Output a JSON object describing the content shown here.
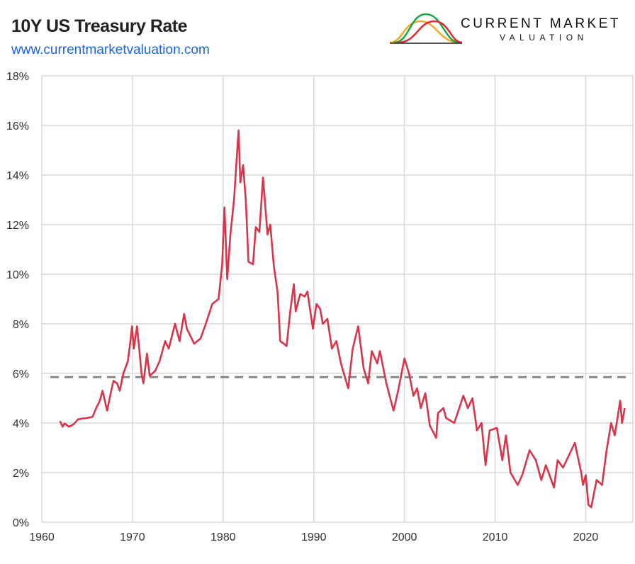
{
  "header": {
    "title": "10Y US Treasury Rate",
    "url": "www.currentmarketvaluation.com"
  },
  "logo": {
    "name": "CURRENT MARKET",
    "sub": "VALUATION",
    "colors": [
      "#f5a623",
      "#1aa648",
      "#e8262f"
    ]
  },
  "chart_data": {
    "type": "line",
    "title": "10Y US Treasury Rate",
    "xlabel": "",
    "ylabel": "",
    "xlim": [
      1960,
      2025.2
    ],
    "ylim": [
      0,
      18
    ],
    "xticks": [
      1960,
      1970,
      1980,
      1990,
      2000,
      2010,
      2020
    ],
    "yticks": [
      "0%",
      "2%",
      "4%",
      "6%",
      "8%",
      "10%",
      "12%",
      "14%",
      "16%",
      "18%"
    ],
    "grid": true,
    "line_color": "#d8344a",
    "mean_line": {
      "value": 5.85,
      "style": "dashed",
      "color": "#888888"
    },
    "series": [
      {
        "points": [
          [
            1962.0,
            4.08
          ],
          [
            1962.3,
            3.85
          ],
          [
            1962.5,
            3.98
          ],
          [
            1963.0,
            3.85
          ],
          [
            1963.5,
            3.95
          ],
          [
            1964.0,
            4.15
          ],
          [
            1964.5,
            4.18
          ],
          [
            1965.0,
            4.2
          ],
          [
            1965.6,
            4.25
          ],
          [
            1966.0,
            4.6
          ],
          [
            1966.4,
            4.9
          ],
          [
            1966.7,
            5.3
          ],
          [
            1967.2,
            4.5
          ],
          [
            1967.6,
            5.2
          ],
          [
            1967.9,
            5.7
          ],
          [
            1968.3,
            5.6
          ],
          [
            1968.6,
            5.3
          ],
          [
            1969.0,
            6.0
          ],
          [
            1969.5,
            6.5
          ],
          [
            1969.8,
            7.4
          ],
          [
            1969.95,
            7.9
          ],
          [
            1970.15,
            7.0
          ],
          [
            1970.5,
            7.9
          ],
          [
            1970.8,
            6.8
          ],
          [
            1971.0,
            6.0
          ],
          [
            1971.2,
            5.6
          ],
          [
            1971.6,
            6.8
          ],
          [
            1971.9,
            5.9
          ],
          [
            1972.5,
            6.1
          ],
          [
            1973.0,
            6.5
          ],
          [
            1973.6,
            7.3
          ],
          [
            1974.0,
            7.0
          ],
          [
            1974.7,
            8.0
          ],
          [
            1975.2,
            7.3
          ],
          [
            1975.7,
            8.4
          ],
          [
            1976.0,
            7.8
          ],
          [
            1976.8,
            7.2
          ],
          [
            1977.5,
            7.4
          ],
          [
            1978.0,
            7.9
          ],
          [
            1978.8,
            8.8
          ],
          [
            1979.5,
            9.0
          ],
          [
            1979.9,
            10.4
          ],
          [
            1980.15,
            12.7
          ],
          [
            1980.45,
            9.8
          ],
          [
            1980.8,
            11.6
          ],
          [
            1981.2,
            13.0
          ],
          [
            1981.7,
            15.8
          ],
          [
            1981.9,
            13.7
          ],
          [
            1982.2,
            14.4
          ],
          [
            1982.5,
            13.0
          ],
          [
            1982.8,
            10.5
          ],
          [
            1983.3,
            10.4
          ],
          [
            1983.6,
            11.9
          ],
          [
            1984.0,
            11.7
          ],
          [
            1984.4,
            13.9
          ],
          [
            1984.9,
            11.6
          ],
          [
            1985.2,
            12.0
          ],
          [
            1985.6,
            10.3
          ],
          [
            1986.0,
            9.3
          ],
          [
            1986.3,
            7.3
          ],
          [
            1986.7,
            7.2
          ],
          [
            1987.0,
            7.1
          ],
          [
            1987.4,
            8.5
          ],
          [
            1987.8,
            9.6
          ],
          [
            1988.0,
            8.5
          ],
          [
            1988.5,
            9.2
          ],
          [
            1989.0,
            9.1
          ],
          [
            1989.3,
            9.3
          ],
          [
            1989.9,
            7.8
          ],
          [
            1990.3,
            8.8
          ],
          [
            1990.7,
            8.6
          ],
          [
            1991.0,
            8.0
          ],
          [
            1991.5,
            8.2
          ],
          [
            1992.0,
            7.0
          ],
          [
            1992.5,
            7.3
          ],
          [
            1993.0,
            6.4
          ],
          [
            1993.8,
            5.4
          ],
          [
            1994.3,
            7.0
          ],
          [
            1994.9,
            7.9
          ],
          [
            1995.5,
            6.2
          ],
          [
            1996.0,
            5.6
          ],
          [
            1996.4,
            6.9
          ],
          [
            1997.0,
            6.4
          ],
          [
            1997.3,
            6.9
          ],
          [
            1998.0,
            5.6
          ],
          [
            1998.8,
            4.5
          ],
          [
            1999.3,
            5.3
          ],
          [
            2000.0,
            6.6
          ],
          [
            2000.5,
            6.0
          ],
          [
            2001.0,
            5.1
          ],
          [
            2001.4,
            5.4
          ],
          [
            2001.8,
            4.6
          ],
          [
            2002.3,
            5.2
          ],
          [
            2002.8,
            3.9
          ],
          [
            2003.5,
            3.4
          ],
          [
            2003.7,
            4.4
          ],
          [
            2004.3,
            4.6
          ],
          [
            2004.6,
            4.2
          ],
          [
            2005.5,
            4.0
          ],
          [
            2006.5,
            5.1
          ],
          [
            2007.0,
            4.6
          ],
          [
            2007.5,
            5.0
          ],
          [
            2008.0,
            3.7
          ],
          [
            2008.5,
            4.0
          ],
          [
            2008.95,
            2.3
          ],
          [
            2009.4,
            3.7
          ],
          [
            2010.2,
            3.8
          ],
          [
            2010.8,
            2.5
          ],
          [
            2011.2,
            3.5
          ],
          [
            2011.7,
            2.0
          ],
          [
            2012.5,
            1.5
          ],
          [
            2013.0,
            1.9
          ],
          [
            2013.8,
            2.9
          ],
          [
            2014.5,
            2.5
          ],
          [
            2015.1,
            1.7
          ],
          [
            2015.6,
            2.3
          ],
          [
            2016.5,
            1.4
          ],
          [
            2016.9,
            2.5
          ],
          [
            2017.5,
            2.2
          ],
          [
            2018.8,
            3.2
          ],
          [
            2019.5,
            2.0
          ],
          [
            2019.7,
            1.5
          ],
          [
            2020.0,
            1.9
          ],
          [
            2020.3,
            0.7
          ],
          [
            2020.6,
            0.6
          ],
          [
            2021.2,
            1.7
          ],
          [
            2021.8,
            1.5
          ],
          [
            2022.3,
            2.9
          ],
          [
            2022.8,
            4.0
          ],
          [
            2023.2,
            3.5
          ],
          [
            2023.8,
            4.9
          ],
          [
            2024.0,
            4.0
          ],
          [
            2024.3,
            4.6
          ]
        ]
      }
    ]
  }
}
